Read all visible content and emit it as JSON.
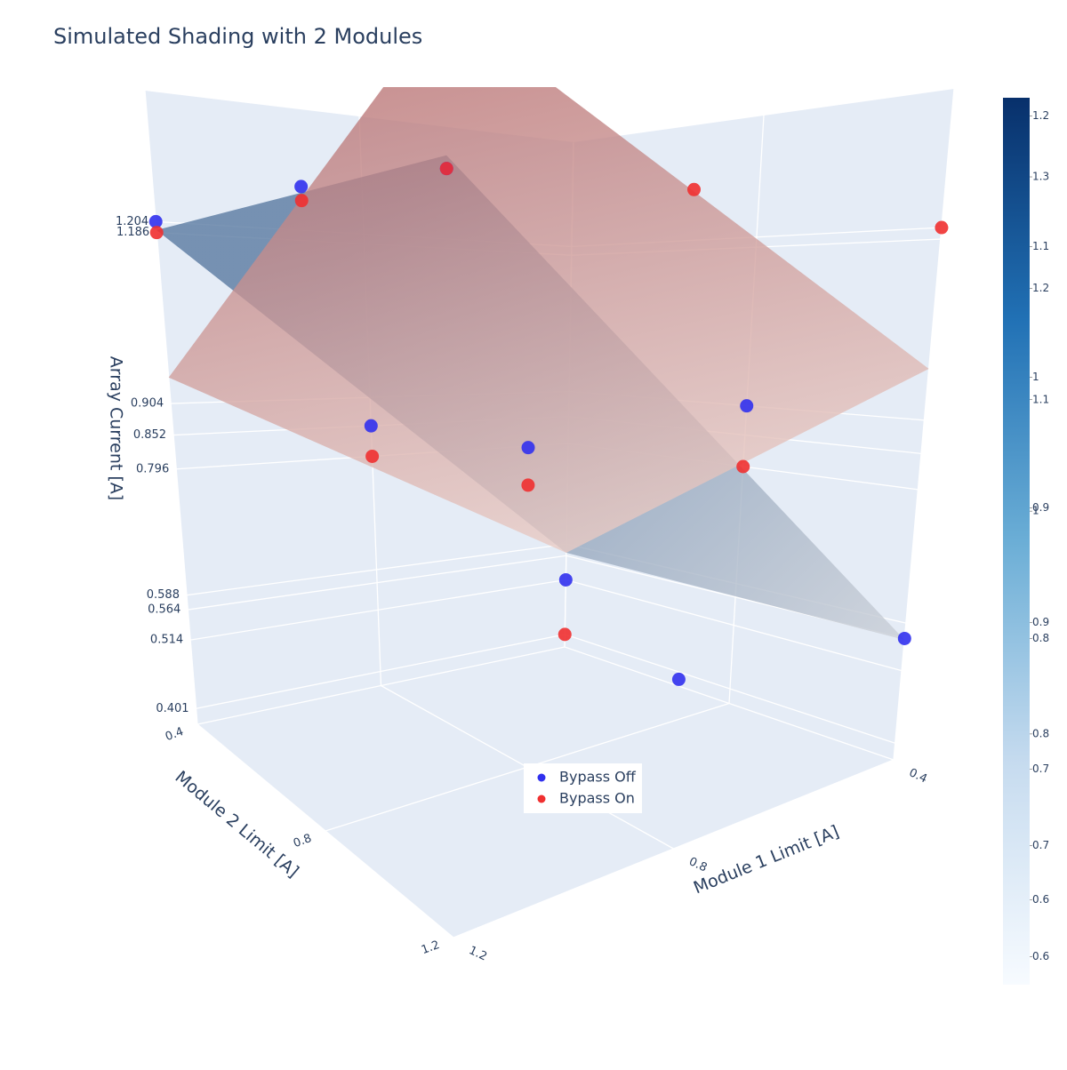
{
  "chart_data": {
    "type": "scatter3d",
    "title": "Simulated Shading with 2 Modules",
    "x_label": "Module 1 Limit [A]",
    "y_label": "Module 2 Limit [A]",
    "z_label": "Array Current [A]",
    "xlim": [
      0.4,
      1.2
    ],
    "ylim": [
      0.4,
      1.2
    ],
    "zlim": [
      0.375,
      1.42
    ],
    "xticks": [
      0.4,
      0.8,
      1.2
    ],
    "yticks": [
      0.4,
      0.8,
      1.2
    ],
    "zticks": [
      0.401,
      0.514,
      0.564,
      0.588,
      0.796,
      0.852,
      0.904,
      1.186,
      1.204
    ],
    "grid": true,
    "legend_position": "bottom-center",
    "series": [
      {
        "name": "Bypass Off",
        "color": "#3131ee",
        "x": [
          1.2,
          1.2,
          1.2,
          0.8,
          0.8,
          0.4,
          0.4,
          0.8,
          0.4
        ],
        "y": [
          0.4,
          0.8,
          1.2,
          0.4,
          0.8,
          0.8,
          0.4,
          1.2,
          1.2
        ],
        "z": [
          1.204,
          1.204,
          1.186,
          0.852,
          0.852,
          0.904,
          0.514,
          0.588,
          0.564
        ]
      },
      {
        "name": "Bypass On",
        "color": "#f03030",
        "x": [
          1.2,
          1.2,
          1.2,
          0.8,
          0.8,
          0.4,
          0.4,
          0.8,
          0.4
        ],
        "y": [
          0.4,
          0.8,
          1.2,
          0.4,
          0.8,
          0.8,
          0.4,
          1.2,
          1.2
        ],
        "z": [
          1.186,
          1.186,
          1.186,
          0.796,
          0.796,
          0.796,
          0.401,
          1.204,
          1.204
        ]
      }
    ],
    "surfaces": [
      {
        "color_low": "#c9ced6",
        "color_high": "#56779f",
        "x": [
          0.4,
          1.2
        ],
        "y": [
          0.4,
          1.2
        ],
        "z": [
          [
            0.57,
            1.19
          ],
          [
            0.562,
            1.2
          ]
        ]
      },
      {
        "color_low": "#e9cbc4",
        "color_high": "#b3696b",
        "x": [
          0.4,
          1.2
        ],
        "y": [
          0.4,
          1.2
        ],
        "z": [
          [
            0.57,
            0.947
          ],
          [
            0.984,
            1.36
          ]
        ]
      }
    ],
    "colorscale": [
      "#f7fbff",
      "#c6dbef",
      "#6baed6",
      "#2171b5",
      "#08306b"
    ],
    "colorbars": [
      {
        "lim": [
          0.535,
          1.214
        ],
        "ticks": [
          0.6,
          0.7,
          0.8,
          0.9,
          1,
          1.1,
          1.2
        ]
      },
      {
        "lim": [
          0.575,
          1.371
        ],
        "ticks": [
          0.6,
          0.7,
          0.8,
          0.9,
          1,
          1.1,
          1.2,
          1.3
        ]
      }
    ]
  }
}
